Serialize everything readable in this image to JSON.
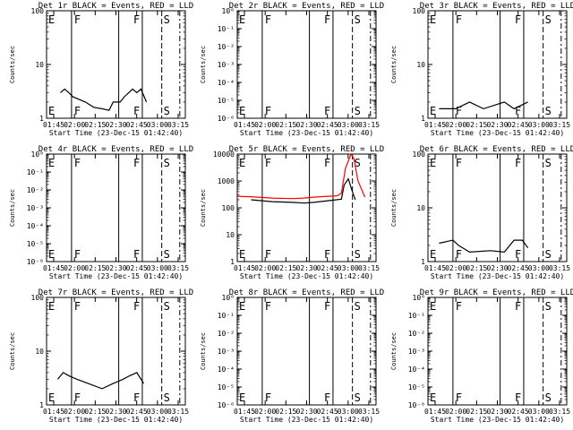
{
  "chart_data": [
    {
      "type": "line",
      "title": "Det 1r BLACK = Events, RED = LLD",
      "xlabel": "Start Time (23-Dec-15 01:42:40)",
      "ylabel": "Counts/sec",
      "ytick_labels": [
        "1",
        "10",
        "100"
      ],
      "yscale": "log",
      "xtick_labels": [
        "01:45",
        "02:00",
        "02:15",
        "02:30",
        "02:45",
        "03:00",
        "03:15"
      ],
      "markers": {
        "start_letters": [
          "E",
          "F"
        ],
        "mid_letters": [
          "F",
          "S"
        ]
      },
      "series": [
        {
          "color": "#000000",
          "values": [
            [
              0.1,
              3
            ],
            [
              0.13,
              3.5
            ],
            [
              0.16,
              3
            ],
            [
              0.19,
              2.5
            ],
            [
              0.28,
              2
            ],
            [
              0.34,
              1.6
            ],
            [
              0.4,
              1.5
            ],
            [
              0.45,
              1.4
            ],
            [
              0.48,
              2
            ],
            [
              0.53,
              2
            ],
            [
              0.56,
              2.5
            ],
            [
              0.62,
              3.5
            ],
            [
              0.65,
              3
            ],
            [
              0.68,
              3.5
            ],
            [
              0.72,
              2
            ]
          ]
        }
      ]
    },
    {
      "type": "line",
      "title": "Det 2r BLACK = Events, RED = LLD",
      "xlabel": "Start Time (23-Dec-15 01:42:40)",
      "ylabel": "Counts/sec",
      "ytick_labels": [
        "10⁻⁶",
        "10⁻⁵",
        "10⁻⁴",
        "10⁻³",
        "10⁻²",
        "10⁻¹",
        "10⁰"
      ],
      "yscale": "log",
      "xtick_labels": [
        "01:45",
        "02:00",
        "02:15",
        "02:30",
        "02:45",
        "03:00",
        "03:15"
      ],
      "markers": {
        "start_letters": [
          "E",
          "F"
        ],
        "mid_letters": [
          "F",
          "S"
        ]
      },
      "series": []
    },
    {
      "type": "line",
      "title": "Det 3r BLACK = Events, RED = LLD",
      "xlabel": "Start Time (23-Dec-15 01:42:40)",
      "ylabel": "Counts/sec",
      "ytick_labels": [
        "1",
        "10",
        "100"
      ],
      "yscale": "log",
      "xtick_labels": [
        "01:45",
        "02:00",
        "02:15",
        "02:30",
        "02:45",
        "03:00",
        "03:15"
      ],
      "markers": {
        "start_letters": [
          "E",
          "F"
        ],
        "mid_letters": [
          "F",
          "S"
        ]
      },
      "series": [
        {
          "color": "#000000",
          "values": [
            [
              0.08,
              1.5
            ],
            [
              0.2,
              1.5
            ],
            [
              0.3,
              2
            ],
            [
              0.4,
              1.5
            ],
            [
              0.55,
              2
            ],
            [
              0.62,
              1.5
            ],
            [
              0.72,
              2
            ]
          ]
        }
      ]
    },
    {
      "type": "line",
      "title": "Det 4r BLACK = Events, RED = LLD",
      "xlabel": "Start Time (23-Dec-15 01:42:40)",
      "ylabel": "Counts/sec",
      "ytick_labels": [
        "10⁻⁶",
        "10⁻⁵",
        "10⁻⁴",
        "10⁻³",
        "10⁻²",
        "10⁻¹",
        "10⁰"
      ],
      "yscale": "log",
      "xtick_labels": [
        "01:45",
        "02:00",
        "02:15",
        "02:30",
        "02:45",
        "03:00",
        "03:15"
      ],
      "markers": {
        "start_letters": [
          "E",
          "F"
        ],
        "mid_letters": [
          "F",
          "S"
        ]
      },
      "series": []
    },
    {
      "type": "line",
      "title": "Det 5r BLACK = Events, RED = LLD",
      "xlabel": "Start Time (23-Dec-15 01:42:40)",
      "ylabel": "Counts/sec",
      "ytick_labels": [
        "1",
        "10",
        "100",
        "1000",
        "10000"
      ],
      "yscale": "log",
      "xtick_labels": [
        "01:45",
        "02:00",
        "02:15",
        "02:30",
        "02:45",
        "03:00",
        "03:15"
      ],
      "markers": {
        "start_letters": [
          "E",
          "F"
        ],
        "mid_letters": [
          "F",
          "S"
        ]
      },
      "series": [
        {
          "color": "#000000",
          "values": [
            [
              0.1,
              200
            ],
            [
              0.25,
              170
            ],
            [
              0.4,
              160
            ],
            [
              0.48,
              150
            ],
            [
              0.55,
              160
            ],
            [
              0.68,
              190
            ],
            [
              0.75,
              210
            ],
            [
              0.77,
              700
            ],
            [
              0.8,
              1200
            ],
            [
              0.83,
              400
            ],
            [
              0.85,
              200
            ]
          ]
        },
        {
          "color": "#ff0000",
          "values": [
            [
              0.0,
              270
            ],
            [
              0.1,
              260
            ],
            [
              0.25,
              230
            ],
            [
              0.4,
              220
            ],
            [
              0.48,
              230
            ],
            [
              0.55,
              250
            ],
            [
              0.65,
              270
            ],
            [
              0.72,
              280
            ],
            [
              0.75,
              350
            ],
            [
              0.78,
              3000
            ],
            [
              0.82,
              10000
            ],
            [
              0.84,
              7000
            ],
            [
              0.87,
              1000
            ],
            [
              0.92,
              250
            ]
          ]
        }
      ]
    },
    {
      "type": "line",
      "title": "Det 6r BLACK = Events, RED = LLD",
      "xlabel": "Start Time (23-Dec-15 01:42:40)",
      "ylabel": "Counts/sec",
      "ytick_labels": [
        "1",
        "10",
        "100"
      ],
      "yscale": "log",
      "xtick_labels": [
        "01:45",
        "02:00",
        "02:15",
        "02:30",
        "02:45",
        "03:00",
        "03:15"
      ],
      "markers": {
        "start_letters": [
          "E",
          "F"
        ],
        "mid_letters": [
          "F",
          "S"
        ]
      },
      "series": [
        {
          "color": "#000000",
          "values": [
            [
              0.08,
              2.2
            ],
            [
              0.18,
              2.5
            ],
            [
              0.22,
              2
            ],
            [
              0.3,
              1.5
            ],
            [
              0.45,
              1.6
            ],
            [
              0.55,
              1.5
            ],
            [
              0.62,
              2.5
            ],
            [
              0.68,
              2.5
            ],
            [
              0.72,
              1.8
            ]
          ]
        }
      ]
    },
    {
      "type": "line",
      "title": "Det 7r BLACK = Events, RED = LLD",
      "xlabel": "Start Time (23-Dec-15 01:42:40)",
      "ylabel": "Counts/sec",
      "ytick_labels": [
        "1",
        "10",
        "100"
      ],
      "yscale": "log",
      "xtick_labels": [
        "01:45",
        "02:00",
        "02:15",
        "02:30",
        "02:45",
        "03:00",
        "03:15"
      ],
      "markers": {
        "start_letters": [
          "E",
          "F"
        ],
        "mid_letters": [
          "F",
          "S"
        ]
      },
      "series": [
        {
          "color": "#000000",
          "values": [
            [
              0.08,
              3
            ],
            [
              0.12,
              4
            ],
            [
              0.16,
              3.5
            ],
            [
              0.22,
              3
            ],
            [
              0.3,
              2.5
            ],
            [
              0.4,
              2
            ],
            [
              0.48,
              2.5
            ],
            [
              0.55,
              3
            ],
            [
              0.6,
              3.5
            ],
            [
              0.65,
              4
            ],
            [
              0.7,
              2.5
            ]
          ]
        }
      ]
    },
    {
      "type": "line",
      "title": "Det 8r BLACK = Events, RED = LLD",
      "xlabel": "Start Time (23-Dec-15 01:42:40)",
      "ylabel": "Counts/sec",
      "ytick_labels": [
        "10⁻⁶",
        "10⁻⁵",
        "10⁻⁴",
        "10⁻³",
        "10⁻²",
        "10⁻¹",
        "10⁰"
      ],
      "yscale": "log",
      "xtick_labels": [
        "01:45",
        "02:00",
        "02:15",
        "02:30",
        "02:45",
        "03:00",
        "03:15"
      ],
      "markers": {
        "start_letters": [
          "E",
          "F"
        ],
        "mid_letters": [
          "F",
          "S"
        ]
      },
      "series": []
    },
    {
      "type": "line",
      "title": "Det 9r BLACK = Events, RED = LLD",
      "xlabel": "Start Time (23-Dec-15 01:42:40)",
      "ylabel": "Counts/sec",
      "ytick_labels": [
        "10⁻⁶",
        "10⁻⁵",
        "10⁻⁴",
        "10⁻³",
        "10⁻²",
        "10⁻¹",
        "10⁰"
      ],
      "yscale": "log",
      "xtick_labels": [
        "01:45",
        "02:00",
        "02:15",
        "02:30",
        "02:45",
        "03:00",
        "03:15"
      ],
      "markers": {
        "start_letters": [
          "E",
          "F"
        ],
        "mid_letters": [
          "F",
          "S"
        ]
      },
      "series": []
    }
  ]
}
